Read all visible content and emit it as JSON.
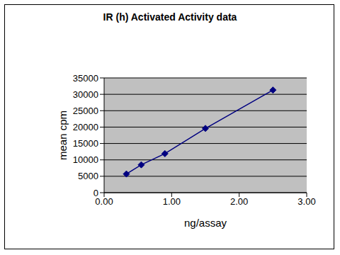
{
  "chart_data": {
    "type": "line",
    "title": "IR (h) Activated Activity data",
    "x_label": "ng/assay",
    "y_label": "mean cpm",
    "x": [
      0.33,
      0.55,
      0.9,
      1.5,
      2.5
    ],
    "values": [
      5700,
      8500,
      11900,
      19600,
      31300
    ],
    "color": "#000080",
    "marker": "diamond",
    "xlim": [
      0,
      3
    ],
    "xticks": [
      {
        "value": 0,
        "label": "0.00"
      },
      {
        "value": 1,
        "label": "1.00"
      },
      {
        "value": 2,
        "label": "2.00"
      },
      {
        "value": 3,
        "label": "3.00"
      }
    ],
    "ylim": [
      0,
      35000
    ],
    "yticks": [
      0,
      5000,
      10000,
      15000,
      20000,
      25000,
      30000,
      35000
    ],
    "grid": true
  }
}
